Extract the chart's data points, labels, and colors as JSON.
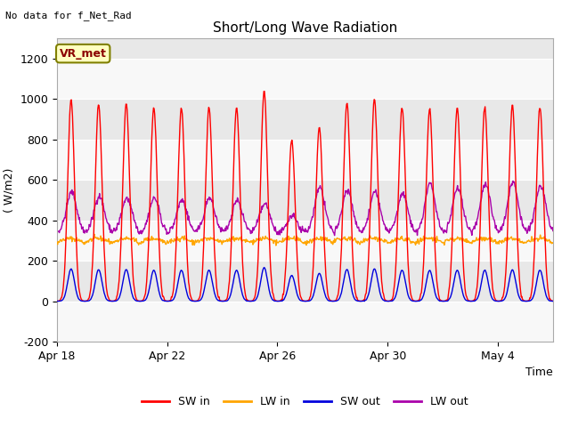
{
  "title": "Short/Long Wave Radiation",
  "xlabel": "Time",
  "ylabel": "( W/m2)",
  "top_left_text": "No data for f_Net_Rad",
  "legend_label": "VR_met",
  "ylim": [
    -200,
    1300
  ],
  "yticks": [
    -200,
    0,
    200,
    400,
    600,
    800,
    1000,
    1200
  ],
  "fig_bg_color": "#ffffff",
  "plot_bg_color": "#e8e8e8",
  "band_color_light": "#f0f0f0",
  "band_color_dark": "#e0e0e0",
  "sw_in_color": "#ff0000",
  "lw_in_color": "#ffa500",
  "sw_out_color": "#0000dd",
  "lw_out_color": "#aa00aa",
  "line_width": 1.0,
  "num_days": 18,
  "xtick_labels": [
    "Apr 18",
    "Apr 22",
    "Apr 26",
    "Apr 30",
    "May 4"
  ],
  "xtick_positions": [
    0,
    4,
    8,
    12,
    16
  ],
  "sw_peaks": [
    1000,
    975,
    975,
    960,
    955,
    960,
    955,
    1040,
    800,
    860,
    980,
    1000,
    960,
    950,
    960,
    960,
    970,
    960
  ],
  "lw_out_peaks": [
    540,
    520,
    510,
    510,
    500,
    510,
    500,
    480,
    420,
    560,
    550,
    540,
    530,
    580,
    560,
    580,
    590,
    570
  ],
  "lw_in_base": 290,
  "lw_out_base": 340,
  "sw_out_ratio": 0.16
}
